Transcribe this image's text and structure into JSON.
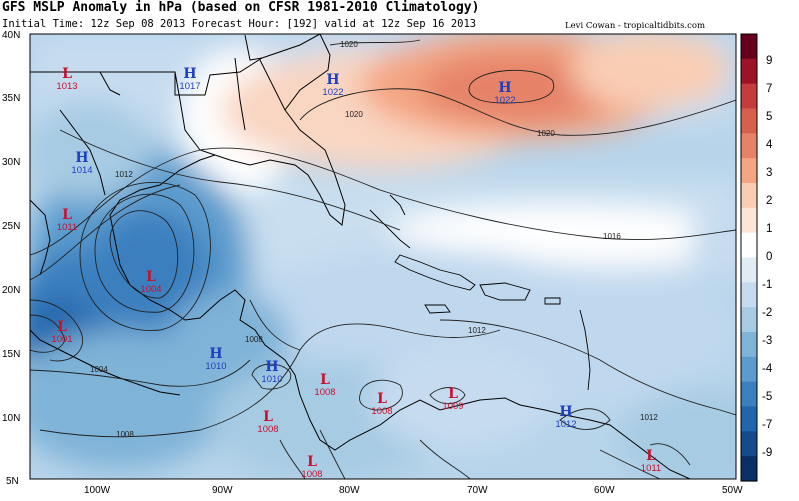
{
  "header": {
    "title": "GFS MSLP Anomaly in hPa (based on CFSR 1981-2010 Climatology)",
    "subtitle": "Initial Time: 12z Sep 08 2013 Forecast Hour: [192] valid at 12z Sep 16 2013",
    "credit": "Levi Cowan - tropicaltidbits.com"
  },
  "axes": {
    "y_labels": [
      "40N",
      "35N",
      "30N",
      "25N",
      "20N",
      "15N",
      "10N",
      "5N"
    ],
    "x_labels": [
      "100W",
      "90W",
      "80W",
      "70W",
      "60W",
      "50W"
    ]
  },
  "colorbar": {
    "labels": [
      "9",
      "7",
      "5",
      "4",
      "3",
      "2",
      "1",
      "0",
      "-1",
      "-2",
      "-3",
      "-4",
      "-5",
      "-7",
      "-9"
    ],
    "colors": [
      "#67001f",
      "#9c1327",
      "#c43c3c",
      "#d6604d",
      "#e58267",
      "#f4a582",
      "#f9cdb4",
      "#fbe5d8",
      "#ffffff",
      "#e0ecf4",
      "#c6dbef",
      "#a6cbe3",
      "#7fb3d8",
      "#5b9bcd",
      "#3b7fbf",
      "#2166ac",
      "#154a8c",
      "#0a2f66"
    ]
  },
  "pressure_centers": [
    {
      "type": "L",
      "value": "1013"
    },
    {
      "type": "H",
      "value": "1017"
    },
    {
      "type": "H",
      "value": "1022"
    },
    {
      "type": "H",
      "value": "1022"
    },
    {
      "type": "H",
      "value": "1014"
    },
    {
      "type": "L",
      "value": "1011"
    },
    {
      "type": "L",
      "value": "1004"
    },
    {
      "type": "L",
      "value": "1001"
    },
    {
      "type": "H",
      "value": "1010"
    },
    {
      "type": "H",
      "value": "1010"
    },
    {
      "type": "L",
      "value": "1008"
    },
    {
      "type": "L",
      "value": "1008"
    },
    {
      "type": "L",
      "value": "1009"
    },
    {
      "type": "L",
      "value": "1008"
    },
    {
      "type": "H",
      "value": "1012"
    },
    {
      "type": "L",
      "value": "1008"
    },
    {
      "type": "L",
      "value": "1011"
    }
  ],
  "isobar_labels": [
    "1020",
    "1020",
    "1020",
    "1016",
    "1012",
    "1012",
    "1012",
    "1008",
    "1008",
    "1004"
  ],
  "colors": {
    "high_label": "#1f3fbf",
    "low_label": "#c8102e"
  }
}
